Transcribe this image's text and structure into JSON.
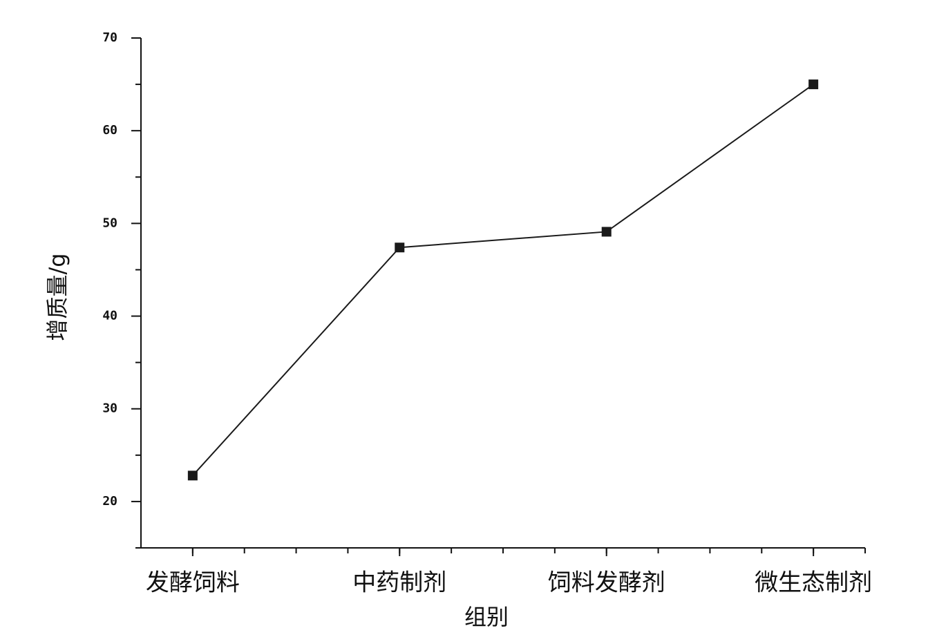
{
  "chart_data": {
    "type": "line",
    "x_label": "组别",
    "y_label": "增质量/g",
    "categories": [
      "发酵饲料",
      "中药制剂",
      "饲料发酵剂",
      "微生态制剂"
    ],
    "series": [
      {
        "name": "增质量",
        "color": "#1a1a1a",
        "values": [
          22.8,
          47.4,
          49.1,
          65
        ]
      }
    ],
    "ylim": [
      15,
      70
    ],
    "yticks": [
      20,
      30,
      40,
      50,
      60,
      70
    ]
  }
}
